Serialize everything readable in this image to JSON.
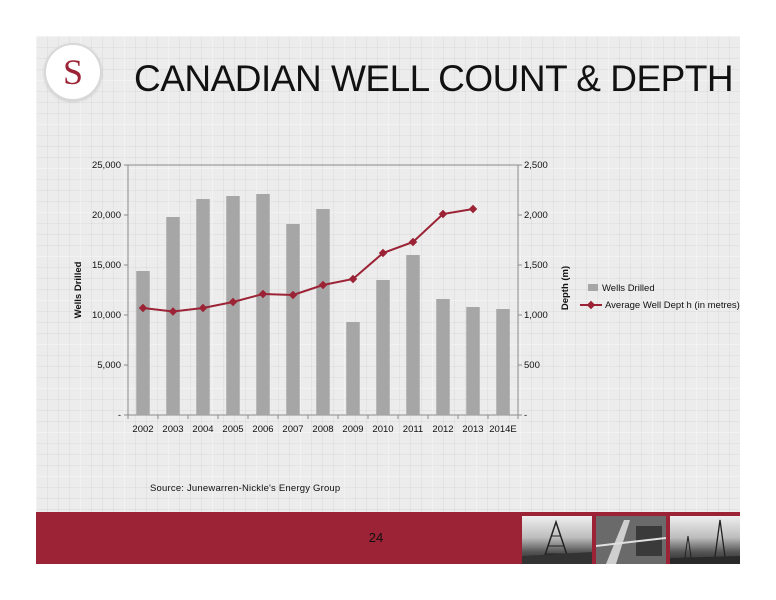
{
  "slide": {
    "logo_letter": "S",
    "title": "CANADIAN WELL COUNT & DEPTH",
    "source": "Source: Junewarren-Nickle's Energy Group",
    "page_number": "24"
  },
  "colors": {
    "bar": "#a6a6a6",
    "line": "#9b2335",
    "footer": "#9b2335"
  },
  "footer_photos": [
    "drilling-rig-photo",
    "drill-floor-photo",
    "rig-silhouette-photo"
  ],
  "chart_data": {
    "type": "bar+line",
    "categories": [
      "2002",
      "2003",
      "2004",
      "2005",
      "2006",
      "2007",
      "2008",
      "2009",
      "2010",
      "2011",
      "2012",
      "2013",
      "2014E"
    ],
    "series": [
      {
        "name": "Wells Drilled",
        "type": "bar",
        "axis": "left",
        "values": [
          14400,
          19800,
          21600,
          21900,
          22100,
          19100,
          20600,
          9300,
          13500,
          16000,
          11600,
          10800,
          10600
        ]
      },
      {
        "name": "Average Well Dept h (in metres)",
        "type": "line",
        "axis": "right",
        "values": [
          1070,
          1035,
          1070,
          1130,
          1210,
          1200,
          1300,
          1360,
          1620,
          1730,
          2010,
          2060,
          null
        ]
      }
    ],
    "ylabel": "Wells Drilled",
    "y2label": "Depth (m)",
    "ylim": [
      0,
      25000
    ],
    "y2lim": [
      0,
      2500
    ],
    "yticks": [
      "-",
      "5,000",
      "10,000",
      "15,000",
      "20,000",
      "25,000"
    ],
    "y2ticks": [
      "-",
      "500",
      "1,000",
      "1,500",
      "2,000",
      "2,500"
    ],
    "legend_position": "right",
    "grid": false
  }
}
